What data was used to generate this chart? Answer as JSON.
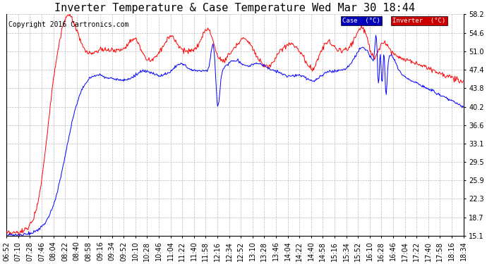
{
  "title": "Inverter Temperature & Case Temperature Wed Mar 30 18:44",
  "copyright": "Copyright 2016 Cartronics.com",
  "yticks": [
    15.1,
    18.7,
    22.3,
    25.9,
    29.5,
    33.1,
    36.6,
    40.2,
    43.8,
    47.4,
    51.0,
    54.6,
    58.2
  ],
  "ylim": [
    15.1,
    58.2
  ],
  "xtick_labels": [
    "06:52",
    "07:10",
    "07:28",
    "07:46",
    "08:04",
    "08:22",
    "08:40",
    "08:58",
    "09:16",
    "09:34",
    "09:52",
    "10:10",
    "10:28",
    "10:46",
    "11:04",
    "11:22",
    "11:40",
    "11:58",
    "12:16",
    "12:34",
    "12:52",
    "13:10",
    "13:28",
    "13:46",
    "14:04",
    "14:22",
    "14:40",
    "14:58",
    "15:16",
    "15:34",
    "15:52",
    "16:10",
    "16:28",
    "16:46",
    "17:04",
    "17:22",
    "17:40",
    "17:58",
    "18:16",
    "18:34"
  ],
  "bg_color": "#ffffff",
  "grid_color": "#bbbbbb",
  "case_color": "#0000ff",
  "inverter_color": "#ff0000",
  "title_fontsize": 11,
  "copyright_fontsize": 7,
  "tick_fontsize": 7,
  "legend_case_bg": "#0000bb",
  "legend_inv_bg": "#cc0000",
  "legend_text_color": "#ffffff"
}
